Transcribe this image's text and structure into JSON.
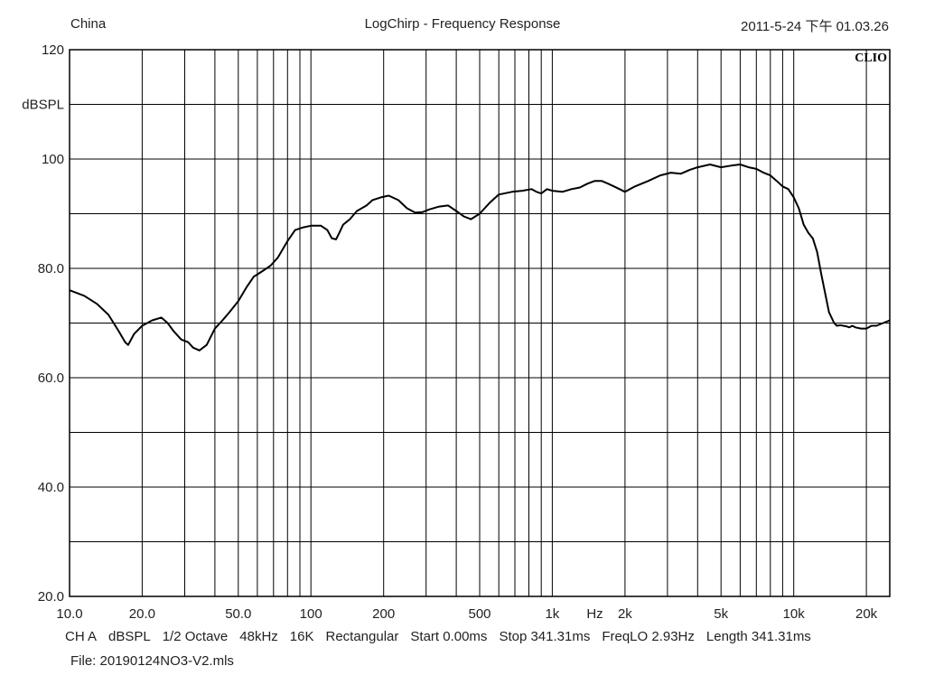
{
  "header": {
    "left": "China",
    "title": "LogChirp - Frequency Response",
    "timestamp": "2011-5-24 下午 01.03.26"
  },
  "brand": "CLIO",
  "chart_data": {
    "type": "line",
    "title": "LogChirp - Frequency Response",
    "xlabel": "Hz",
    "ylabel": "dBSPL",
    "x_scale": "log",
    "xlim": [
      10,
      25000
    ],
    "ylim": [
      20,
      120
    ],
    "grid": true,
    "x_tick_labels": [
      {
        "v": 10,
        "t": "10.0"
      },
      {
        "v": 20,
        "t": "20.0"
      },
      {
        "v": 50,
        "t": "50.0"
      },
      {
        "v": 100,
        "t": "100"
      },
      {
        "v": 200,
        "t": "200"
      },
      {
        "v": 500,
        "t": "500"
      },
      {
        "v": 1000,
        "t": "1k"
      },
      {
        "v": 2000,
        "t": "2k"
      },
      {
        "v": 5000,
        "t": "5k"
      },
      {
        "v": 10000,
        "t": "10k"
      },
      {
        "v": 20000,
        "t": "20k"
      }
    ],
    "x_unit_label": {
      "v": 1500,
      "t": "Hz"
    },
    "y_tick_labels": [
      {
        "v": 120,
        "t": "120"
      },
      {
        "v": 110,
        "t": "dBSPL"
      },
      {
        "v": 100,
        "t": "100"
      },
      {
        "v": 80,
        "t": "80.0"
      },
      {
        "v": 60,
        "t": "60.0"
      },
      {
        "v": 40,
        "t": "40.0"
      },
      {
        "v": 20,
        "t": "20.0"
      }
    ],
    "series": [
      {
        "color": "#000000",
        "x": [
          10,
          11.5,
          13,
          14.5,
          16,
          17,
          17.5,
          18.5,
          20,
          22,
          24,
          25.5,
          27,
          29,
          31,
          32.5,
          34.5,
          37,
          40,
          43,
          46,
          50,
          54,
          58,
          63,
          68,
          73,
          80,
          86,
          93,
          100,
          110,
          117,
          122,
          127,
          131,
          136,
          145,
          155,
          170,
          180,
          195,
          210,
          230,
          250,
          270,
          290,
          310,
          340,
          370,
          400,
          430,
          460,
          500,
          550,
          600,
          680,
          750,
          820,
          860,
          900,
          950,
          1000,
          1100,
          1200,
          1300,
          1400,
          1500,
          1600,
          1700,
          1800,
          1900,
          2000,
          2200,
          2500,
          2800,
          3100,
          3400,
          3700,
          4000,
          4500,
          5000,
          5500,
          6000,
          6500,
          7000,
          7500,
          8000,
          8500,
          9000,
          9500,
          10000,
          10500,
          11000,
          11500,
          12000,
          12500,
          13000,
          14000,
          14700,
          15100,
          15600,
          16500,
          17000,
          17500,
          18000,
          19000,
          20000,
          21000,
          22000,
          25000
        ],
        "y": [
          76,
          75,
          73.5,
          71.5,
          68.5,
          66.5,
          66,
          68,
          69.5,
          70.5,
          71,
          70,
          68.5,
          67,
          66.5,
          65.5,
          65,
          66,
          69,
          70.5,
          72,
          74,
          76.5,
          78.5,
          79.5,
          80.5,
          82,
          85,
          87,
          87.5,
          87.8,
          87.8,
          87,
          85.5,
          85.3,
          86.5,
          88,
          89,
          90.5,
          91.5,
          92.5,
          93,
          93.3,
          92.5,
          91,
          90.2,
          90.3,
          90.8,
          91.3,
          91.5,
          90.5,
          89.5,
          89,
          90,
          92,
          93.5,
          94,
          94.2,
          94.5,
          94,
          93.7,
          94.5,
          94.2,
          94,
          94.5,
          94.8,
          95.5,
          96,
          96,
          95.5,
          95,
          94.5,
          94,
          95,
          96,
          97,
          97.5,
          97.3,
          98,
          98.5,
          99,
          98.5,
          98.8,
          99,
          98.5,
          98.2,
          97.5,
          97,
          96,
          95,
          94.5,
          93,
          91,
          88,
          86.5,
          85.5,
          83,
          79,
          72,
          70,
          69.5,
          69.6,
          69.4,
          69.2,
          69.5,
          69.2,
          69,
          69,
          69.5,
          69.5,
          70.5
        ]
      }
    ]
  },
  "footer": {
    "settings": [
      "CH A",
      "dBSPL",
      "1/2 Octave",
      "48kHz",
      "16K",
      "Rectangular",
      "Start 0.00ms",
      "Stop 341.31ms",
      "FreqLO 2.93Hz",
      "Length 341.31ms"
    ],
    "file": "File: 20190124NO3-V2.mls"
  }
}
